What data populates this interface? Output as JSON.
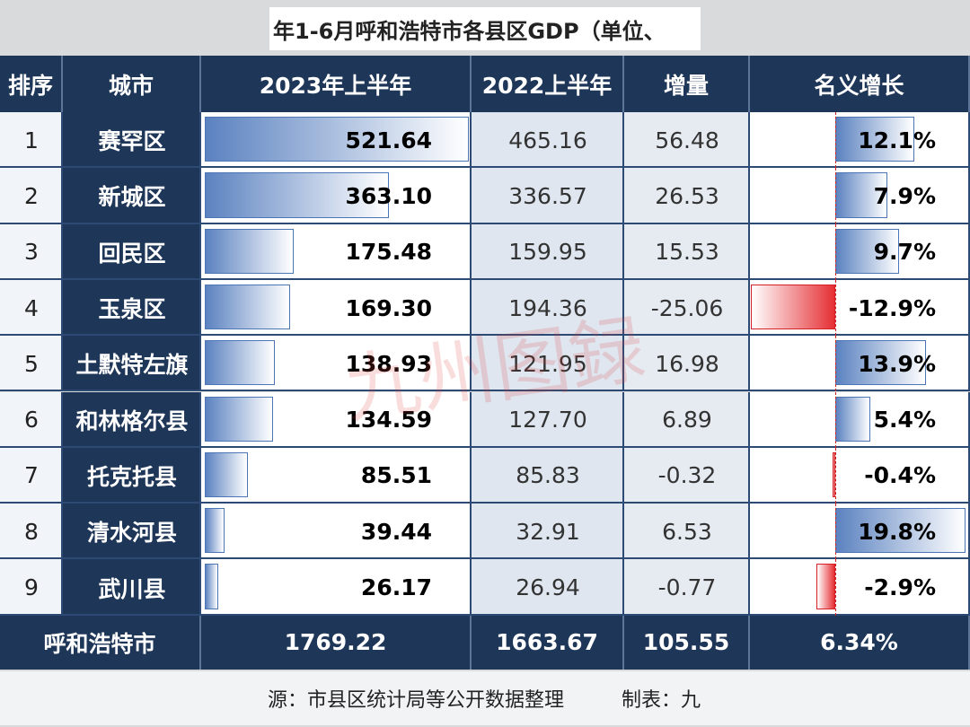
{
  "header": {
    "title": "年1-6月呼和浩特市各县区GDP（单位、"
  },
  "table": {
    "columns": [
      "排序",
      "城市",
      "2023年上半年",
      "2022上半年",
      "增量",
      "名义增长"
    ],
    "rows": [
      [
        "1",
        "赛罕区",
        "521.64",
        "465.16",
        "56.48",
        "12.1%"
      ],
      [
        "2",
        "新城区",
        "363.10",
        "336.57",
        "26.53",
        "7.9%"
      ],
      [
        "3",
        "回民区",
        "175.48",
        "159.95",
        "15.53",
        "9.7%"
      ],
      [
        "4",
        "玉泉区",
        "169.30",
        "194.36",
        "-25.06",
        "-12.9%"
      ],
      [
        "5",
        "土默特左旗",
        "138.93",
        "121.95",
        "16.98",
        "13.9%"
      ],
      [
        "6",
        "和林格尔县",
        "134.59",
        "127.70",
        "6.89",
        "5.4%"
      ],
      [
        "7",
        "托克托县",
        "85.51",
        "85.83",
        "-0.32",
        "-0.4%"
      ],
      [
        "8",
        "清水河县",
        "39.44",
        "32.91",
        "6.53",
        "19.8%"
      ],
      [
        "9",
        "武川县",
        "26.17",
        "26.94",
        "-0.77",
        "-2.9%"
      ]
    ],
    "total": [
      "呼和浩特市",
      "1769.22",
      "1663.67",
      "105.55",
      "6.34%"
    ]
  },
  "footer": {
    "source": "源：市县区统计局等公开数据整理",
    "maker": "制表：九"
  },
  "watermark": "九州图録"
}
